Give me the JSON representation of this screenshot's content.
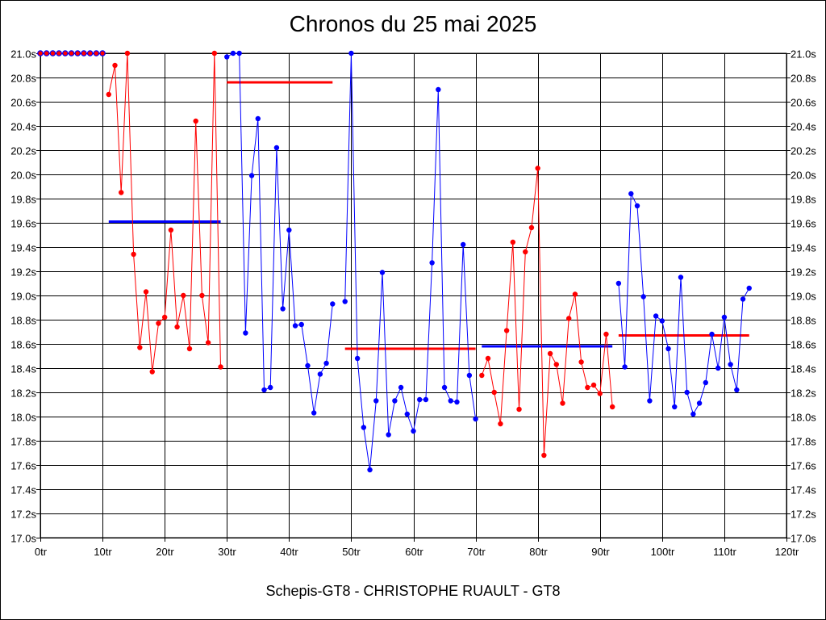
{
  "chart_data": {
    "type": "line",
    "title": "Chronos du 25 mai 2025",
    "footer": "Schepis-GT8 - CHRISTOPHE RUAULT - GT8",
    "x_ticks": [
      "0tr",
      "10tr",
      "20tr",
      "30tr",
      "40tr",
      "50tr",
      "60tr",
      "70tr",
      "80tr",
      "90tr",
      "100tr",
      "110tr",
      "120tr"
    ],
    "y_ticks": [
      "17.0s",
      "17.2s",
      "17.4s",
      "17.6s",
      "17.8s",
      "18.0s",
      "18.2s",
      "18.4s",
      "18.6s",
      "18.8s",
      "19.0s",
      "19.2s",
      "19.4s",
      "19.6s",
      "19.8s",
      "20.0s",
      "20.2s",
      "20.4s",
      "20.6s",
      "20.8s",
      "21.0s"
    ],
    "xlim": [
      0,
      120
    ],
    "ylim": [
      17.0,
      21.0
    ],
    "grid": true,
    "colors": {
      "red": "#ff0000",
      "blue": "#0000ff"
    },
    "series": [
      {
        "name": "session-1",
        "color": "red",
        "marker_edge": "blue",
        "points": [
          [
            0,
            21.0
          ],
          [
            1,
            21.0
          ],
          [
            2,
            21.0
          ],
          [
            3,
            21.0
          ],
          [
            4,
            21.0
          ],
          [
            5,
            21.0
          ],
          [
            6,
            21.0
          ],
          [
            7,
            21.0
          ],
          [
            8,
            21.0
          ],
          [
            9,
            21.0
          ],
          [
            10,
            21.0
          ]
        ]
      },
      {
        "name": "session-2",
        "color": "red",
        "points": [
          [
            11,
            20.66
          ],
          [
            12,
            20.9
          ],
          [
            13,
            19.85
          ],
          [
            14,
            21.0
          ],
          [
            15,
            19.34
          ],
          [
            16,
            18.57
          ],
          [
            17,
            19.03
          ],
          [
            18,
            18.37
          ],
          [
            19,
            18.77
          ],
          [
            20,
            18.82
          ],
          [
            21,
            19.54
          ],
          [
            22,
            18.74
          ],
          [
            23,
            19.0
          ],
          [
            24,
            18.56
          ],
          [
            25,
            20.44
          ],
          [
            26,
            19.0
          ],
          [
            27,
            18.61
          ],
          [
            28,
            21.0
          ],
          [
            29,
            18.41
          ]
        ]
      },
      {
        "name": "session-3",
        "color": "blue",
        "points": [
          [
            30,
            20.97
          ],
          [
            31,
            21.0
          ],
          [
            32,
            21.0
          ],
          [
            33,
            18.69
          ],
          [
            34,
            19.99
          ],
          [
            35,
            20.46
          ],
          [
            36,
            18.22
          ],
          [
            37,
            18.24
          ],
          [
            38,
            20.22
          ],
          [
            39,
            18.89
          ],
          [
            40,
            19.54
          ],
          [
            41,
            18.75
          ],
          [
            42,
            18.76
          ],
          [
            43,
            18.42
          ],
          [
            44,
            18.03
          ],
          [
            45,
            18.35
          ],
          [
            46,
            18.44
          ],
          [
            47,
            18.93
          ]
        ]
      },
      {
        "name": "session-4",
        "color": "blue",
        "points": [
          [
            49,
            18.95
          ],
          [
            50,
            21.0
          ],
          [
            51,
            18.48
          ],
          [
            52,
            17.91
          ],
          [
            53,
            17.56
          ],
          [
            54,
            18.13
          ],
          [
            55,
            19.19
          ],
          [
            56,
            17.85
          ],
          [
            57,
            18.13
          ],
          [
            58,
            18.24
          ],
          [
            59,
            18.02
          ],
          [
            60,
            17.88
          ],
          [
            61,
            18.14
          ],
          [
            62,
            18.14
          ],
          [
            63,
            19.27
          ],
          [
            64,
            20.7
          ],
          [
            65,
            18.24
          ],
          [
            66,
            18.13
          ],
          [
            67,
            18.12
          ],
          [
            68,
            19.42
          ],
          [
            69,
            18.34
          ],
          [
            70,
            17.98
          ]
        ]
      },
      {
        "name": "session-5",
        "color": "red",
        "points": [
          [
            71,
            18.34
          ],
          [
            72,
            18.48
          ],
          [
            73,
            18.2
          ],
          [
            74,
            17.94
          ],
          [
            75,
            18.71
          ],
          [
            76,
            19.44
          ],
          [
            77,
            18.06
          ],
          [
            78,
            19.36
          ],
          [
            79,
            19.56
          ],
          [
            80,
            20.05
          ],
          [
            81,
            17.68
          ],
          [
            82,
            18.52
          ],
          [
            83,
            18.43
          ],
          [
            84,
            18.11
          ],
          [
            85,
            18.81
          ],
          [
            86,
            19.01
          ],
          [
            87,
            18.45
          ],
          [
            88,
            18.24
          ],
          [
            89,
            18.26
          ],
          [
            90,
            18.19
          ],
          [
            91,
            18.68
          ],
          [
            92,
            18.08
          ]
        ]
      },
      {
        "name": "session-6",
        "color": "blue",
        "points": [
          [
            93,
            19.1
          ],
          [
            94,
            18.41
          ],
          [
            95,
            19.84
          ],
          [
            96,
            19.74
          ],
          [
            97,
            18.99
          ],
          [
            98,
            18.13
          ],
          [
            99,
            18.83
          ],
          [
            100,
            18.79
          ],
          [
            101,
            18.56
          ],
          [
            102,
            18.08
          ],
          [
            103,
            19.15
          ],
          [
            104,
            18.2
          ],
          [
            105,
            18.02
          ],
          [
            106,
            18.11
          ],
          [
            107,
            18.28
          ],
          [
            108,
            18.68
          ],
          [
            109,
            18.4
          ],
          [
            110,
            18.82
          ],
          [
            111,
            18.43
          ],
          [
            112,
            18.22
          ],
          [
            113,
            18.97
          ],
          [
            114,
            19.06
          ]
        ]
      }
    ],
    "averages": [
      {
        "color": "blue",
        "x_start": 11,
        "x_end": 29,
        "value": 19.61
      },
      {
        "color": "red",
        "x_start": 30,
        "x_end": 47,
        "value": 20.76
      },
      {
        "color": "red",
        "x_start": 49,
        "x_end": 70,
        "value": 18.56
      },
      {
        "color": "blue",
        "x_start": 71,
        "x_end": 92,
        "value": 18.58
      },
      {
        "color": "red",
        "x_start": 93,
        "x_end": 114,
        "value": 18.67
      }
    ]
  }
}
